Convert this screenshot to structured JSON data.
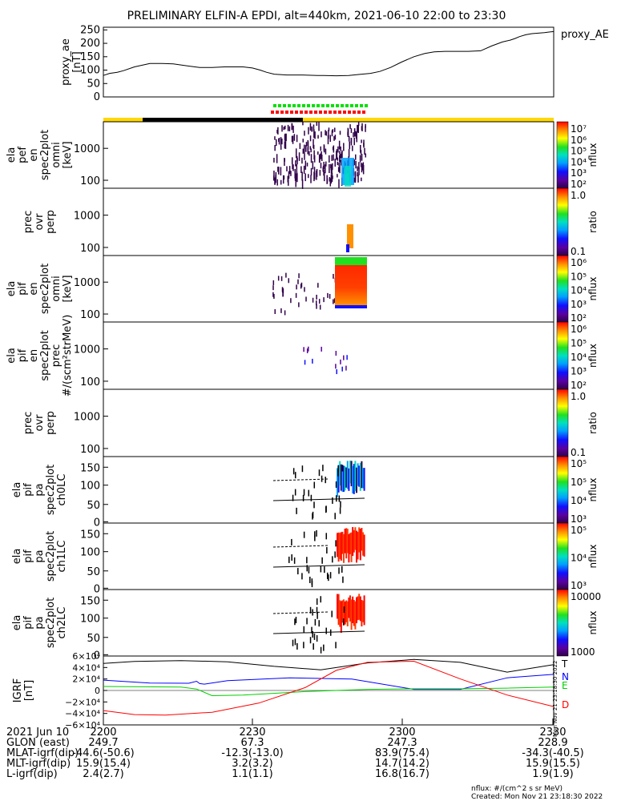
{
  "title": "PRELIMINARY ELFIN-A EPDI, alt=440km, 2021-06-10 22:00 to 23:30",
  "created": "Created: Mon Nov 21 23:18:30 2022",
  "units_note": "nflux: #/(cm^2 s sr MeV)",
  "side_stamp": "Mon Nov 21 23:18:30 2022",
  "chart_data": [
    {
      "id": "proxy_ae",
      "type": "line",
      "ylabel": [
        "proxy_ae",
        "[nT]"
      ],
      "legend": "proxy_AE",
      "yticks": [
        "250",
        "200",
        "150",
        "100",
        "50",
        "0"
      ],
      "ylim": [
        0,
        260
      ],
      "x": [
        0,
        4,
        9,
        13,
        20,
        30,
        38,
        45,
        55,
        62,
        70,
        78,
        90,
        96,
        101,
        105,
        110,
        118,
        128,
        138,
        142,
        150,
        158,
        165,
        172,
        178,
        185,
        192,
        200,
        207,
        213,
        220,
        228,
        235,
        243,
        250,
        257,
        262,
        265,
        268,
        272,
        276,
        280,
        284,
        287,
        290
      ],
      "y": [
        80,
        88,
        92,
        98,
        112,
        125,
        125,
        123,
        115,
        110,
        110,
        112,
        112,
        108,
        100,
        92,
        85,
        82,
        82,
        80,
        80,
        79,
        80,
        84,
        88,
        95,
        110,
        130,
        150,
        162,
        168,
        170,
        170,
        170,
        172,
        190,
        205,
        212,
        218,
        225,
        232,
        236,
        238,
        240,
        242,
        244
      ],
      "color": "#000000"
    },
    {
      "id": "ela_pef_en_spec2plot_omni",
      "type": "heatmap",
      "ylabel": [
        "ela",
        "pef",
        "en",
        "spec2plot",
        "omni",
        "[keV]"
      ],
      "yticks": [
        "1000",
        "100"
      ],
      "colorbar": {
        "label": "nflux",
        "ticks": [
          "10^7",
          "10^6",
          "10^5",
          "10^4",
          "10^3",
          "10^2"
        ]
      }
    },
    {
      "id": "prec_ovr_perp_1",
      "type": "heatmap",
      "ylabel": [
        "prec",
        "ovr",
        "perp"
      ],
      "yticks": [
        "1000",
        "100"
      ],
      "colorbar": {
        "label": "ratio",
        "ticks": [
          "1.0",
          "0.1"
        ]
      }
    },
    {
      "id": "ela_pif_en_spec2plot_omni",
      "type": "heatmap",
      "ylabel": [
        "ela",
        "pif",
        "en",
        "spec2plot",
        "omni",
        "[keV]"
      ],
      "yticks": [
        "1000",
        "100"
      ],
      "colorbar": {
        "label": "nflux",
        "ticks": [
          "10^6",
          "10^5",
          "10^4",
          "10^3",
          "10^2"
        ]
      }
    },
    {
      "id": "ela_pif_en_spec2plot_prec",
      "type": "heatmap",
      "ylabel": [
        "ela",
        "pif",
        "en",
        "spec2plot",
        "prec",
        "#/(scm²strMeV)"
      ],
      "yticks": [
        "1000",
        "100"
      ],
      "colorbar": {
        "label": "nflux",
        "ticks": [
          "10^6",
          "10^5",
          "10^4",
          "10^3",
          "10^2"
        ]
      }
    },
    {
      "id": "prec_ovr_perp_2",
      "type": "heatmap",
      "ylabel": [
        "prec",
        "ovr",
        "perp"
      ],
      "yticks": [
        "1000",
        "100"
      ],
      "colorbar": {
        "label": "ratio",
        "ticks": [
          "1.0",
          "0.1"
        ]
      }
    },
    {
      "id": "ela_pif_pa_spec2plot_ch0LC",
      "type": "heatmap",
      "ylabel": [
        "ela",
        "pif",
        "pa",
        "spec2plot",
        "ch0LC"
      ],
      "yticks": [
        "150",
        "100",
        "50",
        "0"
      ],
      "colorbar": {
        "label": "nflux",
        "ticks": [
          "10^5",
          "10^5",
          "10^4",
          "10^3"
        ]
      }
    },
    {
      "id": "ela_pif_pa_spec2plot_ch1LC",
      "type": "heatmap",
      "ylabel": [
        "ela",
        "pif",
        "pa",
        "spec2plot",
        "ch1LC"
      ],
      "yticks": [
        "150",
        "100",
        "50",
        "0"
      ],
      "colorbar": {
        "label": "nflux",
        "ticks": [
          "10^5",
          "10^4",
          "10^3"
        ]
      }
    },
    {
      "id": "ela_pif_pa_spec2plot_ch2LC",
      "type": "heatmap",
      "ylabel": [
        "ela",
        "pif",
        "pa",
        "spec2plot",
        "ch2LC"
      ],
      "yticks": [
        "150",
        "100",
        "50",
        "0"
      ],
      "colorbar": {
        "label": "nflux",
        "ticks": [
          "10000",
          "1000"
        ]
      }
    },
    {
      "id": "igrf",
      "type": "line",
      "ylabel": [
        "IGRF",
        "[nT]"
      ],
      "yticks": [
        "6×10⁴",
        "4×10⁴",
        "2×10⁴",
        "0",
        "−2×10⁴",
        "−4×10⁴",
        "−6×10⁴"
      ],
      "ylim": [
        -60000,
        60000
      ],
      "series": [
        {
          "name": "T",
          "color": "#000000",
          "x": [
            0,
            20,
            50,
            80,
            110,
            140,
            170,
            200,
            230,
            260,
            290
          ],
          "y": [
            47000,
            50500,
            52000,
            50000,
            42000,
            36000,
            48000,
            54000,
            49000,
            32000,
            45000
          ]
        },
        {
          "name": "N",
          "color": "#0000ff",
          "x": [
            0,
            30,
            55,
            60,
            62,
            65,
            80,
            120,
            160,
            200,
            230,
            260,
            290
          ],
          "y": [
            18000,
            13000,
            12500,
            16000,
            12000,
            11000,
            17000,
            22000,
            20000,
            2000,
            2000,
            22000,
            28000
          ]
        },
        {
          "name": "E",
          "color": "#00d000",
          "x": [
            0,
            50,
            60,
            70,
            90,
            130,
            170,
            200,
            230,
            260,
            290
          ],
          "y": [
            7000,
            6000,
            2500,
            -9000,
            -8000,
            -2000,
            2000,
            3000,
            3000,
            4000,
            6000
          ]
        },
        {
          "name": "D",
          "color": "#ff0000",
          "x": [
            0,
            20,
            40,
            70,
            100,
            130,
            150,
            170,
            200,
            230,
            260,
            290
          ],
          "y": [
            -35000,
            -42000,
            -43000,
            -38000,
            -22000,
            5000,
            35000,
            49000,
            51000,
            20000,
            -8000,
            -28000
          ]
        }
      ]
    }
  ],
  "x_axis": {
    "ticks": [
      "2200",
      "2230",
      "2300",
      "2330"
    ],
    "rows": [
      {
        "label": "2021 Jun 10",
        "values": [
          "2200",
          "2230",
          "2300",
          "2330"
        ]
      },
      {
        "label": "GLON (east)",
        "values": [
          "249.7",
          "67.3",
          "247.3",
          "228.9"
        ]
      },
      {
        "label": "MLAT-igrf(dip)",
        "values": [
          "-44.6(-50.6)",
          "-12.3(-13.0)",
          "83.9(75.4)",
          "-34.3(-40.5)"
        ]
      },
      {
        "label": "MLT-igrf(dip)",
        "values": [
          "15.9(15.4)",
          "3.2(3.2)",
          "14.7(14.2)",
          "15.9(15.5)"
        ]
      },
      {
        "label": "L-igrf(dip)",
        "values": [
          "2.4(2.7)",
          "1.1(1.1)",
          "16.8(16.7)",
          "1.9(1.9)"
        ]
      }
    ]
  },
  "colors": {
    "bar_yellow": "#ffd800",
    "bar_black": "#000000",
    "marker_green": "#00e000",
    "marker_red": "#ff0000"
  }
}
